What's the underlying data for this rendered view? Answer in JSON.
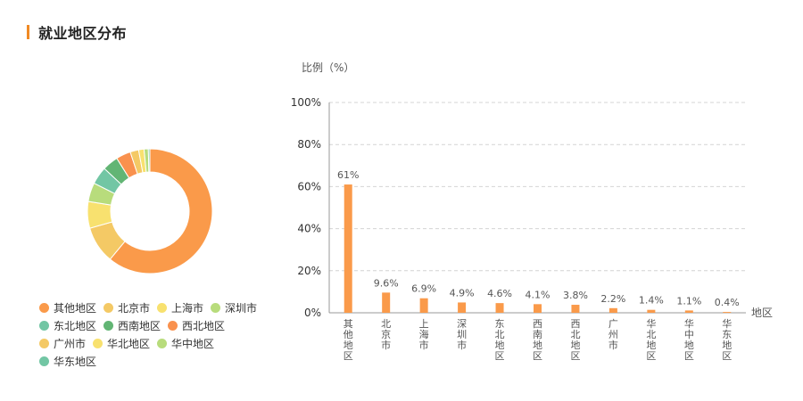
{
  "section": {
    "title": "就业地区分布"
  },
  "colors": {
    "accent": "#f08a24",
    "bar": "#fa9a4a",
    "grid": "#d4d4d4",
    "axis": "#999999"
  },
  "donut": {
    "slices": [
      {
        "name": "其他地区",
        "value": 61,
        "color": "#fa9a4a"
      },
      {
        "name": "北京市",
        "value": 9.6,
        "color": "#f4c965"
      },
      {
        "name": "上海市",
        "value": 6.9,
        "color": "#f8e16f"
      },
      {
        "name": "深圳市",
        "value": 4.9,
        "color": "#b8dc7c"
      },
      {
        "name": "东北地区",
        "value": 4.6,
        "color": "#72c6a4"
      },
      {
        "name": "西南地区",
        "value": 4.1,
        "color": "#62b574"
      },
      {
        "name": "西北地区",
        "value": 3.8,
        "color": "#f9914e"
      },
      {
        "name": "广州市",
        "value": 2.2,
        "color": "#f4c965"
      },
      {
        "name": "华北地区",
        "value": 1.4,
        "color": "#f8e16f"
      },
      {
        "name": "华中地区",
        "value": 1.1,
        "color": "#b8dc7c"
      },
      {
        "name": "华东地区",
        "value": 0.4,
        "color": "#72c6a4"
      }
    ]
  },
  "chart_data": {
    "type": "bar",
    "ylabel": "比例（%）",
    "xlabel": "地区",
    "ylim": [
      0,
      100
    ],
    "yticks": [
      "0%",
      "20%",
      "40%",
      "60%",
      "80%",
      "100%"
    ],
    "grid": true,
    "categories": [
      "其他地区",
      "北京市",
      "上海市",
      "深圳市",
      "东北地区",
      "西南地区",
      "西北地区",
      "广州市",
      "华北地区",
      "华中地区",
      "华东地区"
    ],
    "values": [
      61,
      9.6,
      6.9,
      4.9,
      4.6,
      4.1,
      3.8,
      2.2,
      1.4,
      1.1,
      0.4
    ],
    "value_labels": [
      "61%",
      "9.6%",
      "6.9%",
      "4.9%",
      "4.6%",
      "4.1%",
      "3.8%",
      "2.2%",
      "1.4%",
      "1.1%",
      "0.4%"
    ]
  }
}
